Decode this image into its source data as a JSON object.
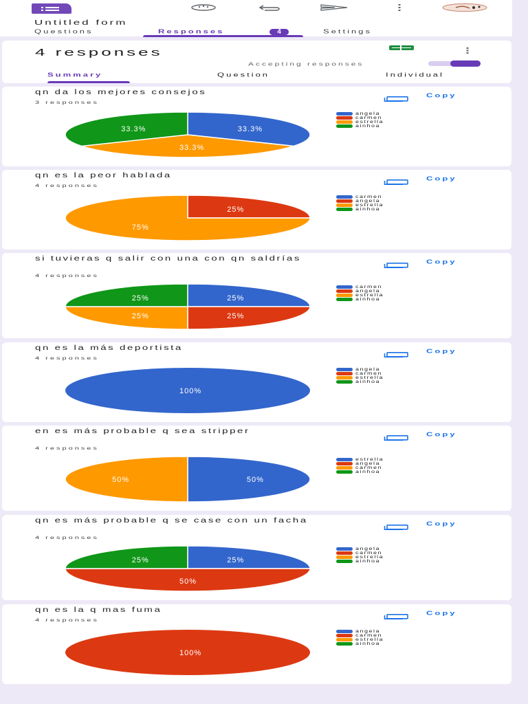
{
  "header": {
    "app_icon": "google-forms-icon",
    "icons": [
      "palette-icon",
      "undo-icon",
      "send-icon",
      "more-vert-icon",
      "avatar"
    ],
    "form_title": "Untitled form",
    "tabs": [
      {
        "label": "Questions",
        "active": false
      },
      {
        "label": "Responses",
        "active": true,
        "badge": "4"
      },
      {
        "label": "Settings",
        "active": false
      }
    ]
  },
  "summary": {
    "title": "4 responses",
    "sheets_icon": "google-sheets-icon",
    "more_icon": "more-vert-icon",
    "accepting_label": "Accepting responses",
    "accepting_on": true,
    "tabs": [
      {
        "label": "Summary",
        "active": true
      },
      {
        "label": "Question",
        "active": false
      },
      {
        "label": "Individual",
        "active": false
      }
    ]
  },
  "colors": {
    "blue": "#3366cc",
    "red": "#dc3912",
    "orange": "#ff9900",
    "green": "#109618",
    "accent": "#673ab7",
    "link": "#1a73e8",
    "background": "#ede9f7"
  },
  "copy_label": "Copy",
  "chart_data": [
    {
      "type": "pie",
      "title": "qn da los mejores consejos",
      "subtitle": "3 responses",
      "categories": [
        "angela",
        "carmen",
        "estrella",
        "ainhoa"
      ],
      "values": [
        33.3,
        0,
        33.3,
        33.3
      ],
      "labels": [
        "33.3%",
        "",
        "33.3%",
        "33.3%"
      ],
      "legend_colors": [
        "#3366cc",
        "#dc3912",
        "#ff9900",
        "#109618"
      ],
      "legend_position": "right"
    },
    {
      "type": "pie",
      "title": "qn es la peor hablada",
      "subtitle": "4 responses",
      "categories": [
        "carmen",
        "angela",
        "estrella",
        "ainhoa"
      ],
      "values": [
        0,
        25,
        75,
        0
      ],
      "labels": [
        "",
        "25%",
        "75%",
        ""
      ],
      "legend_colors": [
        "#3366cc",
        "#dc3912",
        "#ff9900",
        "#109618"
      ],
      "legend_position": "right"
    },
    {
      "type": "pie",
      "title": "si tuvieras q salir con una con qn saldrías",
      "subtitle": "4 responses",
      "categories": [
        "carmen",
        "angela",
        "estrella",
        "ainhoa"
      ],
      "values": [
        25,
        25,
        25,
        25
      ],
      "labels": [
        "25%",
        "25%",
        "25%",
        "25%"
      ],
      "legend_colors": [
        "#3366cc",
        "#dc3912",
        "#ff9900",
        "#109618"
      ],
      "legend_position": "right"
    },
    {
      "type": "pie",
      "title": "qn es la más deportista",
      "subtitle": "4 responses",
      "categories": [
        "angela",
        "carmen",
        "estrella",
        "ainhoa"
      ],
      "values": [
        100,
        0,
        0,
        0
      ],
      "labels": [
        "100%",
        "",
        "",
        ""
      ],
      "legend_colors": [
        "#3366cc",
        "#dc3912",
        "#ff9900",
        "#109618"
      ],
      "legend_position": "right"
    },
    {
      "type": "pie",
      "title": "en es más probable q sea stripper",
      "subtitle": "4 responses",
      "categories": [
        "estrella",
        "angela",
        "carmen",
        "ainhoa"
      ],
      "values": [
        50,
        0,
        50,
        0
      ],
      "labels": [
        "50%",
        "",
        "50%",
        ""
      ],
      "legend_colors": [
        "#3366cc",
        "#dc3912",
        "#ff9900",
        "#109618"
      ],
      "legend_position": "right"
    },
    {
      "type": "pie",
      "title": "qn es más probable q se case con un facha",
      "subtitle": "4 responses",
      "categories": [
        "angela",
        "carmen",
        "estrella",
        "ainhoa"
      ],
      "values": [
        25,
        50,
        0,
        25
      ],
      "labels": [
        "25%",
        "50%",
        "",
        "25%"
      ],
      "legend_colors": [
        "#3366cc",
        "#dc3912",
        "#ff9900",
        "#109618"
      ],
      "legend_position": "right"
    },
    {
      "type": "pie",
      "title": "qn es la q mas fuma",
      "subtitle": "4 responses",
      "categories": [
        "angela",
        "carmen",
        "estrella",
        "ainhoa"
      ],
      "values": [
        0,
        100,
        0,
        0
      ],
      "labels": [
        "",
        "100%",
        "",
        ""
      ],
      "legend_colors": [
        "#3366cc",
        "#dc3912",
        "#ff9900",
        "#109618"
      ],
      "legend_position": "right"
    }
  ]
}
